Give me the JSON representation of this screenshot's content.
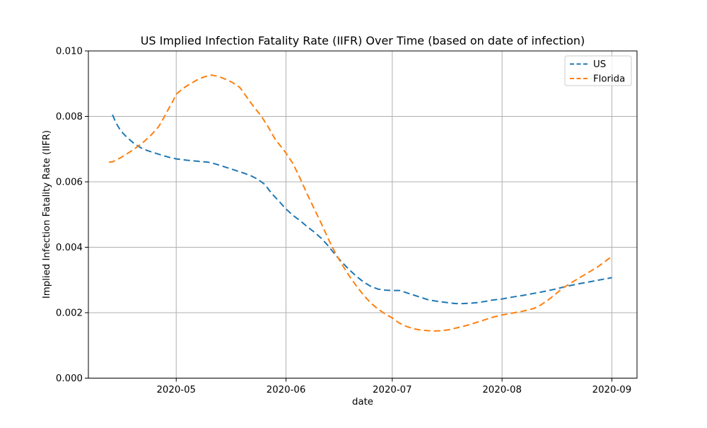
{
  "figure": {
    "background": "#ffffff",
    "axis_color": "#000000",
    "text_color": "#000000"
  },
  "legend": {
    "border_color": "#cccccc",
    "background": "#ffffff",
    "position": "top-right"
  },
  "chart_data": {
    "type": "line",
    "title": "US Implied Infection Fatality Rate (IIFR) Over Time (based on date of infection)",
    "xlabel": "date",
    "ylabel": "Implied Infection Fatality Rate (IIFR)",
    "grid": true,
    "grid_color": "#b0b0b0",
    "line_style": "dashed",
    "x_encoding": "days since 2020-04-01",
    "x_domain": [
      5.2,
      160.1
    ],
    "y_domain": [
      0.0,
      0.01
    ],
    "x_ticks": [
      {
        "pos": 30,
        "label": "2020-05"
      },
      {
        "pos": 61,
        "label": "2020-06"
      },
      {
        "pos": 91,
        "label": "2020-07"
      },
      {
        "pos": 122,
        "label": "2020-08"
      },
      {
        "pos": 153,
        "label": "2020-09"
      }
    ],
    "y_ticks": [
      {
        "pos": 0.0,
        "label": "0.000"
      },
      {
        "pos": 0.002,
        "label": "0.002"
      },
      {
        "pos": 0.004,
        "label": "0.004"
      },
      {
        "pos": 0.006,
        "label": "0.006"
      },
      {
        "pos": 0.008,
        "label": "0.008"
      },
      {
        "pos": 0.01,
        "label": "0.010"
      }
    ],
    "series": [
      {
        "name": "US",
        "color": "#1f77b4",
        "dash": [
          9,
          5
        ],
        "points": [
          [
            12,
            0.00805
          ],
          [
            13,
            0.0078
          ],
          [
            14,
            0.00762
          ],
          [
            15,
            0.00748
          ],
          [
            16,
            0.00737
          ],
          [
            18,
            0.00718
          ],
          [
            20,
            0.00704
          ],
          [
            22,
            0.00695
          ],
          [
            24,
            0.00688
          ],
          [
            26,
            0.00681
          ],
          [
            28,
            0.00675
          ],
          [
            30,
            0.0067
          ],
          [
            33,
            0.00666
          ],
          [
            36,
            0.00663
          ],
          [
            39,
            0.0066
          ],
          [
            41,
            0.00655
          ],
          [
            43,
            0.00648
          ],
          [
            45,
            0.00641
          ],
          [
            47,
            0.00634
          ],
          [
            49,
            0.00627
          ],
          [
            51,
            0.00619
          ],
          [
            53,
            0.00608
          ],
          [
            55,
            0.00592
          ],
          [
            57,
            0.00564
          ],
          [
            59,
            0.00541
          ],
          [
            61,
            0.00517
          ],
          [
            63,
            0.00497
          ],
          [
            65,
            0.00481
          ],
          [
            67,
            0.00463
          ],
          [
            69,
            0.00446
          ],
          [
            71,
            0.00427
          ],
          [
            73,
            0.00403
          ],
          [
            75,
            0.00376
          ],
          [
            77,
            0.00352
          ],
          [
            79,
            0.0033
          ],
          [
            81,
            0.0031
          ],
          [
            83,
            0.00293
          ],
          [
            85,
            0.0028
          ],
          [
            87,
            0.00272
          ],
          [
            89,
            0.00269
          ],
          [
            91,
            0.00268
          ],
          [
            93,
            0.00268
          ],
          [
            95,
            0.00261
          ],
          [
            97,
            0.00254
          ],
          [
            99,
            0.00247
          ],
          [
            101,
            0.0024
          ],
          [
            103,
            0.00236
          ],
          [
            105,
            0.00233
          ],
          [
            107,
            0.0023
          ],
          [
            109,
            0.00228
          ],
          [
            111,
            0.00228
          ],
          [
            113,
            0.00229
          ],
          [
            115,
            0.00231
          ],
          [
            117,
            0.00234
          ],
          [
            119,
            0.00238
          ],
          [
            122,
            0.00242
          ],
          [
            125,
            0.00248
          ],
          [
            128,
            0.00253
          ],
          [
            131,
            0.00259
          ],
          [
            134,
            0.00265
          ],
          [
            137,
            0.00272
          ],
          [
            140,
            0.0028
          ],
          [
            143,
            0.00287
          ],
          [
            146,
            0.00293
          ],
          [
            149,
            0.00299
          ],
          [
            151,
            0.00303
          ],
          [
            153,
            0.00307
          ]
        ]
      },
      {
        "name": "Florida",
        "color": "#ff7f0e",
        "dash": [
          9,
          5
        ],
        "points": [
          [
            11,
            0.0066
          ],
          [
            12,
            0.00661
          ],
          [
            13,
            0.00666
          ],
          [
            14,
            0.00672
          ],
          [
            15,
            0.00678
          ],
          [
            16,
            0.00685
          ],
          [
            17,
            0.00692
          ],
          [
            18,
            0.00699
          ],
          [
            19,
            0.00707
          ],
          [
            20,
            0.00715
          ],
          [
            21,
            0.00724
          ],
          [
            22,
            0.00734
          ],
          [
            23,
            0.00744
          ],
          [
            24,
            0.00756
          ],
          [
            25,
            0.00768
          ],
          [
            26,
            0.00786
          ],
          [
            27,
            0.00806
          ],
          [
            28,
            0.00826
          ],
          [
            29,
            0.00845
          ],
          [
            30,
            0.00868
          ],
          [
            32,
            0.00886
          ],
          [
            34,
            0.009
          ],
          [
            36,
            0.00912
          ],
          [
            38,
            0.00921
          ],
          [
            40,
            0.00926
          ],
          [
            42,
            0.00922
          ],
          [
            44,
            0.00913
          ],
          [
            46,
            0.00903
          ],
          [
            48,
            0.00888
          ],
          [
            50,
            0.00858
          ],
          [
            52,
            0.00828
          ],
          [
            54,
            0.00801
          ],
          [
            56,
            0.00767
          ],
          [
            58,
            0.00729
          ],
          [
            60,
            0.00702
          ],
          [
            61,
            0.00688
          ],
          [
            63,
            0.00655
          ],
          [
            65,
            0.0061
          ],
          [
            67,
            0.00562
          ],
          [
            69,
            0.00517
          ],
          [
            71,
            0.00472
          ],
          [
            73,
            0.00424
          ],
          [
            75,
            0.00381
          ],
          [
            77,
            0.00344
          ],
          [
            79,
            0.0031
          ],
          [
            81,
            0.0028
          ],
          [
            83,
            0.00252
          ],
          [
            85,
            0.00229
          ],
          [
            87,
            0.00211
          ],
          [
            89,
            0.00196
          ],
          [
            91,
            0.00184
          ],
          [
            93,
            0.00168
          ],
          [
            95,
            0.00158
          ],
          [
            97,
            0.00151
          ],
          [
            99,
            0.00147
          ],
          [
            101,
            0.00145
          ],
          [
            103,
            0.00144
          ],
          [
            105,
            0.00145
          ],
          [
            107,
            0.00148
          ],
          [
            109,
            0.00153
          ],
          [
            111,
            0.00158
          ],
          [
            113,
            0.00164
          ],
          [
            115,
            0.00171
          ],
          [
            117,
            0.00178
          ],
          [
            119,
            0.00185
          ],
          [
            122,
            0.00193
          ],
          [
            125,
            0.00199
          ],
          [
            128,
            0.00205
          ],
          [
            131,
            0.00213
          ],
          [
            133,
            0.00224
          ],
          [
            135,
            0.00239
          ],
          [
            137,
            0.00256
          ],
          [
            139,
            0.00274
          ],
          [
            141,
            0.00288
          ],
          [
            143,
            0.00301
          ],
          [
            145,
            0.00314
          ],
          [
            147,
            0.00327
          ],
          [
            149,
            0.0034
          ],
          [
            151,
            0.00356
          ],
          [
            153,
            0.00372
          ]
        ]
      }
    ]
  }
}
